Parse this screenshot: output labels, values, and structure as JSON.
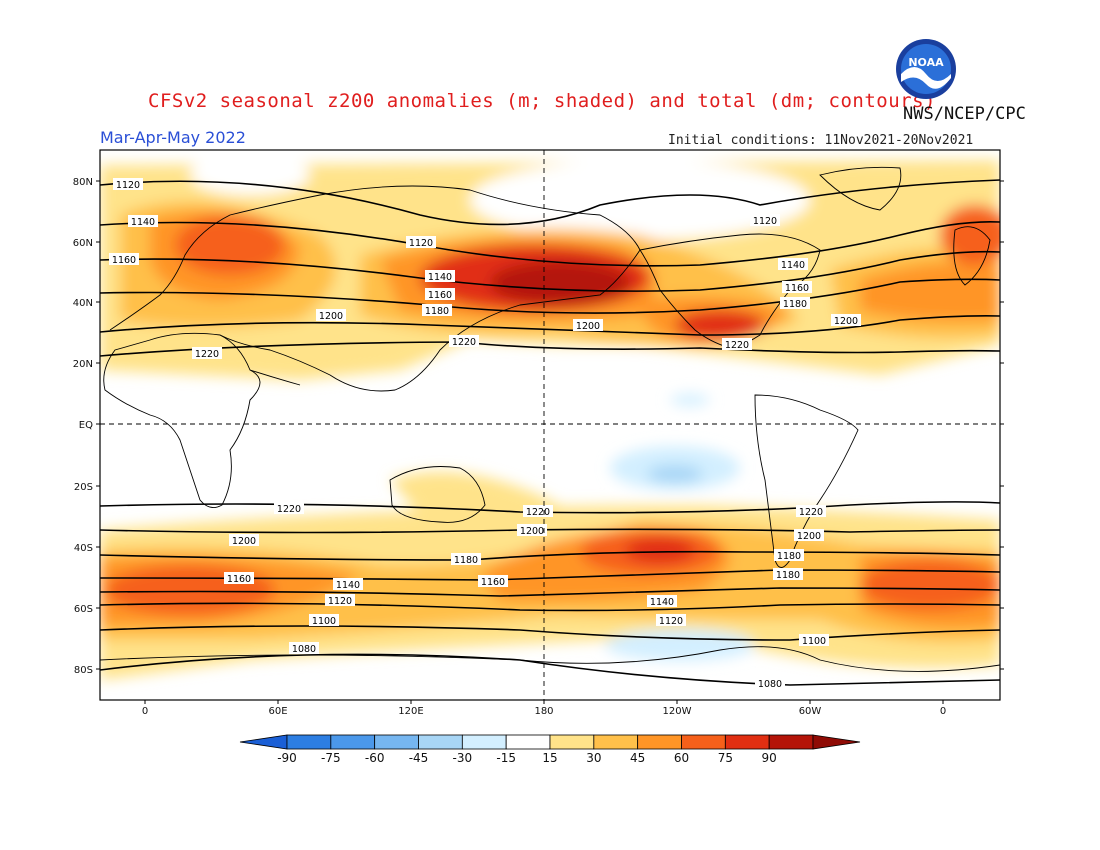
{
  "title": "CFSv2 seasonal z200 anomalies (m; shaded) and total (dm; contours)",
  "agency": "NWS/NCEP/CPC",
  "season": "Mar-Apr-May 2022",
  "initial_conditions": "Initial conditions: 11Nov2021-20Nov2021",
  "logo": {
    "icon": "noaa-logo-icon",
    "text": "NOAA"
  },
  "map": {
    "lat_labels": [
      "80N",
      "60N",
      "40N",
      "20N",
      "EQ",
      "20S",
      "40S",
      "60S",
      "80S"
    ],
    "lon_labels": [
      "0",
      "60E",
      "120E",
      "180",
      "120W",
      "60W",
      "0"
    ],
    "contour_levels": [
      "1220",
      "1200",
      "1180",
      "1160",
      "1140",
      "1120",
      "1100",
      "1080"
    ]
  },
  "colorbar": {
    "labels": [
      "-90",
      "-75",
      "-60",
      "-45",
      "-30",
      "-15",
      "15",
      "30",
      "45",
      "60",
      "75",
      "90"
    ],
    "colors": [
      "#1a5fd6",
      "#2d7ee2",
      "#4b98ea",
      "#76b6f0",
      "#a8d6f6",
      "#d3efff",
      "#ffffff",
      "#ffe38a",
      "#ffc04a",
      "#ff9526",
      "#f6601a",
      "#e12f12",
      "#b41408",
      "#8f0b05"
    ]
  }
}
